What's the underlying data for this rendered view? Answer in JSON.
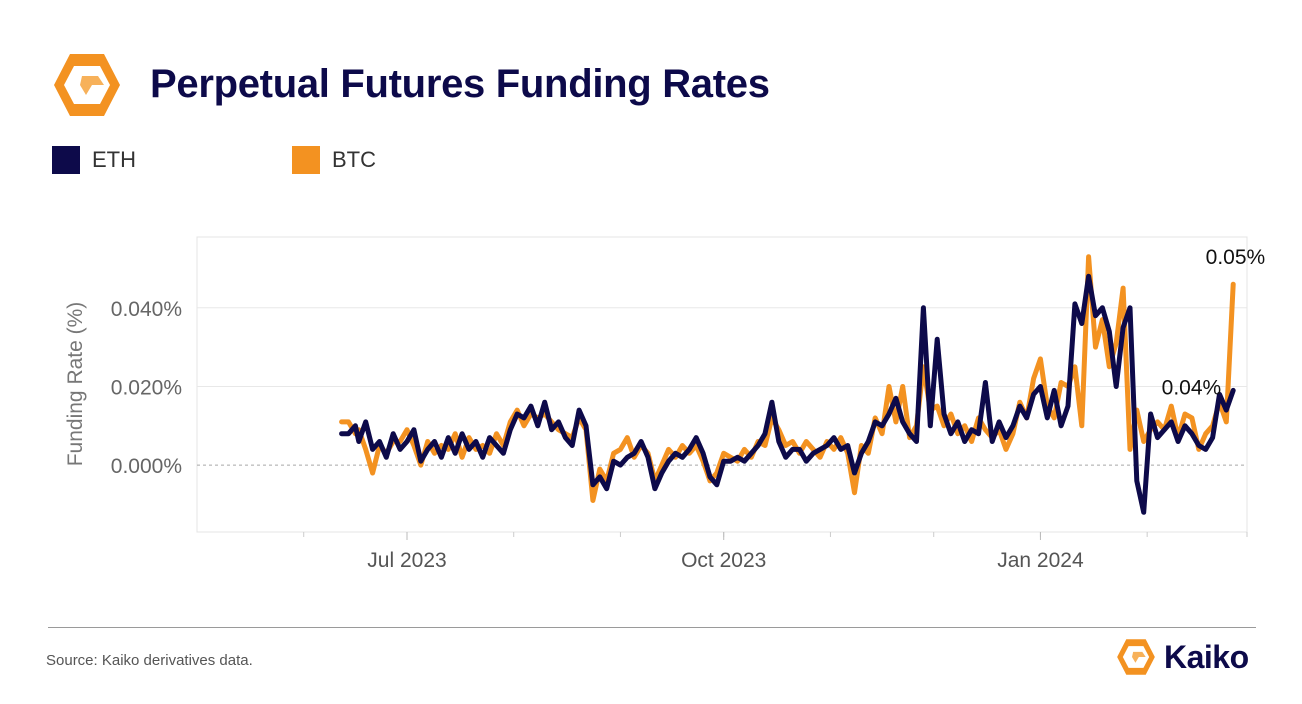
{
  "header": {
    "title": "Perpetual Futures Funding Rates",
    "logo_icon": "kaiko-hexagon-logo-icon"
  },
  "legend": [
    {
      "label": "ETH",
      "color": "#0d0a4a"
    },
    {
      "label": "BTC",
      "color": "#f39221"
    }
  ],
  "footer": {
    "source": "Source: Kaiko derivatives data.",
    "brand_name": "Kaiko",
    "brand_icon": "kaiko-logo-icon"
  },
  "colors": {
    "eth": "#0d0a4a",
    "btc": "#f39221",
    "brand_orange": "#f39221"
  },
  "chart_data": {
    "type": "line",
    "title": "",
    "xlabel": "",
    "ylabel": "Funding Rate (%)",
    "ylim": [
      -0.017,
      0.058
    ],
    "xlim": [
      "2023-05-01",
      "2024-03-01"
    ],
    "yticks": [
      0.0,
      0.02,
      0.04
    ],
    "ytick_labels": [
      "0.000%",
      "0.020%",
      "0.040%"
    ],
    "xticks": [
      "2023-07-01",
      "2023-10-01",
      "2024-01-01"
    ],
    "xtick_labels": [
      "Jul 2023",
      "Oct 2023",
      "Jan 2024"
    ],
    "zero_line": true,
    "grid": true,
    "legend_position": "top-left",
    "annotations": [
      {
        "series": "BTC",
        "text": "0.05%"
      },
      {
        "series": "ETH",
        "text": "0.04%"
      }
    ],
    "series": [
      {
        "name": "ETH",
        "points": [
          [
            "2023-06-12",
            0.008
          ],
          [
            "2023-06-14",
            0.008
          ],
          [
            "2023-06-16",
            0.01
          ],
          [
            "2023-06-17",
            0.006
          ],
          [
            "2023-06-19",
            0.011
          ],
          [
            "2023-06-21",
            0.004
          ],
          [
            "2023-06-23",
            0.006
          ],
          [
            "2023-06-25",
            0.002
          ],
          [
            "2023-06-27",
            0.008
          ],
          [
            "2023-06-29",
            0.004
          ],
          [
            "2023-07-01",
            0.006
          ],
          [
            "2023-07-03",
            0.009
          ],
          [
            "2023-07-05",
            0.001
          ],
          [
            "2023-07-07",
            0.004
          ],
          [
            "2023-07-09",
            0.006
          ],
          [
            "2023-07-11",
            0.002
          ],
          [
            "2023-07-13",
            0.007
          ],
          [
            "2023-07-15",
            0.003
          ],
          [
            "2023-07-17",
            0.008
          ],
          [
            "2023-07-19",
            0.004
          ],
          [
            "2023-07-21",
            0.006
          ],
          [
            "2023-07-23",
            0.002
          ],
          [
            "2023-07-25",
            0.007
          ],
          [
            "2023-07-27",
            0.005
          ],
          [
            "2023-07-29",
            0.003
          ],
          [
            "2023-07-31",
            0.009
          ],
          [
            "2023-08-02",
            0.013
          ],
          [
            "2023-08-04",
            0.012
          ],
          [
            "2023-08-06",
            0.015
          ],
          [
            "2023-08-08",
            0.01
          ],
          [
            "2023-08-10",
            0.016
          ],
          [
            "2023-08-12",
            0.009
          ],
          [
            "2023-08-14",
            0.011
          ],
          [
            "2023-08-16",
            0.007
          ],
          [
            "2023-08-18",
            0.005
          ],
          [
            "2023-08-20",
            0.014
          ],
          [
            "2023-08-22",
            0.01
          ],
          [
            "2023-08-24",
            -0.005
          ],
          [
            "2023-08-26",
            -0.003
          ],
          [
            "2023-08-28",
            -0.006
          ],
          [
            "2023-08-30",
            0.001
          ],
          [
            "2023-09-01",
            0.0
          ],
          [
            "2023-09-03",
            0.002
          ],
          [
            "2023-09-05",
            0.003
          ],
          [
            "2023-09-07",
            0.006
          ],
          [
            "2023-09-09",
            0.002
          ],
          [
            "2023-09-11",
            -0.006
          ],
          [
            "2023-09-13",
            -0.002
          ],
          [
            "2023-09-15",
            0.001
          ],
          [
            "2023-09-17",
            0.003
          ],
          [
            "2023-09-19",
            0.002
          ],
          [
            "2023-09-21",
            0.004
          ],
          [
            "2023-09-23",
            0.007
          ],
          [
            "2023-09-25",
            0.003
          ],
          [
            "2023-09-27",
            -0.003
          ],
          [
            "2023-09-29",
            -0.005
          ],
          [
            "2023-10-01",
            0.001
          ],
          [
            "2023-10-03",
            0.001
          ],
          [
            "2023-10-05",
            0.002
          ],
          [
            "2023-10-07",
            0.001
          ],
          [
            "2023-10-09",
            0.003
          ],
          [
            "2023-10-11",
            0.005
          ],
          [
            "2023-10-13",
            0.008
          ],
          [
            "2023-10-15",
            0.016
          ],
          [
            "2023-10-17",
            0.006
          ],
          [
            "2023-10-19",
            0.002
          ],
          [
            "2023-10-21",
            0.004
          ],
          [
            "2023-10-23",
            0.004
          ],
          [
            "2023-10-25",
            0.001
          ],
          [
            "2023-10-27",
            0.003
          ],
          [
            "2023-10-29",
            0.004
          ],
          [
            "2023-10-31",
            0.005
          ],
          [
            "2023-11-02",
            0.007
          ],
          [
            "2023-11-04",
            0.004
          ],
          [
            "2023-11-06",
            0.005
          ],
          [
            "2023-11-08",
            -0.002
          ],
          [
            "2023-11-10",
            0.003
          ],
          [
            "2023-11-12",
            0.006
          ],
          [
            "2023-11-14",
            0.011
          ],
          [
            "2023-11-16",
            0.01
          ],
          [
            "2023-11-18",
            0.013
          ],
          [
            "2023-11-20",
            0.017
          ],
          [
            "2023-11-22",
            0.011
          ],
          [
            "2023-11-24",
            0.008
          ],
          [
            "2023-11-26",
            0.006
          ],
          [
            "2023-11-28",
            0.04
          ],
          [
            "2023-11-30",
            0.01
          ],
          [
            "2023-12-02",
            0.032
          ],
          [
            "2023-12-04",
            0.013
          ],
          [
            "2023-12-06",
            0.008
          ],
          [
            "2023-12-08",
            0.011
          ],
          [
            "2023-12-10",
            0.006
          ],
          [
            "2023-12-12",
            0.009
          ],
          [
            "2023-12-14",
            0.008
          ],
          [
            "2023-12-16",
            0.021
          ],
          [
            "2023-12-18",
            0.006
          ],
          [
            "2023-12-20",
            0.011
          ],
          [
            "2023-12-22",
            0.007
          ],
          [
            "2023-12-24",
            0.01
          ],
          [
            "2023-12-26",
            0.015
          ],
          [
            "2023-12-28",
            0.012
          ],
          [
            "2023-12-30",
            0.018
          ],
          [
            "2024-01-01",
            0.02
          ],
          [
            "2024-01-03",
            0.012
          ],
          [
            "2024-01-05",
            0.019
          ],
          [
            "2024-01-07",
            0.01
          ],
          [
            "2024-01-09",
            0.015
          ],
          [
            "2024-01-11",
            0.041
          ],
          [
            "2024-01-13",
            0.036
          ],
          [
            "2024-01-15",
            0.048
          ],
          [
            "2024-01-17",
            0.038
          ],
          [
            "2024-01-19",
            0.04
          ],
          [
            "2024-01-21",
            0.034
          ],
          [
            "2024-01-23",
            0.02
          ],
          [
            "2024-01-25",
            0.035
          ],
          [
            "2024-01-27",
            0.04
          ],
          [
            "2024-01-29",
            -0.004
          ],
          [
            "2024-01-31",
            -0.012
          ],
          [
            "2024-02-02",
            0.013
          ],
          [
            "2024-02-04",
            0.007
          ],
          [
            "2024-02-06",
            0.009
          ],
          [
            "2024-02-08",
            0.011
          ],
          [
            "2024-02-10",
            0.006
          ],
          [
            "2024-02-12",
            0.01
          ],
          [
            "2024-02-14",
            0.008
          ],
          [
            "2024-02-16",
            0.005
          ],
          [
            "2024-02-18",
            0.004
          ],
          [
            "2024-02-20",
            0.007
          ],
          [
            "2024-02-22",
            0.018
          ],
          [
            "2024-02-24",
            0.014
          ],
          [
            "2024-02-26",
            0.019
          ]
        ]
      },
      {
        "name": "BTC",
        "points": [
          [
            "2023-06-12",
            0.011
          ],
          [
            "2023-06-14",
            0.011
          ],
          [
            "2023-06-16",
            0.008
          ],
          [
            "2023-06-17",
            0.009
          ],
          [
            "2023-06-19",
            0.004
          ],
          [
            "2023-06-21",
            -0.002
          ],
          [
            "2023-06-23",
            0.005
          ],
          [
            "2023-06-25",
            0.003
          ],
          [
            "2023-06-27",
            0.006
          ],
          [
            "2023-06-29",
            0.006
          ],
          [
            "2023-07-01",
            0.009
          ],
          [
            "2023-07-03",
            0.005
          ],
          [
            "2023-07-05",
            0.0
          ],
          [
            "2023-07-07",
            0.006
          ],
          [
            "2023-07-09",
            0.003
          ],
          [
            "2023-07-11",
            0.005
          ],
          [
            "2023-07-13",
            0.004
          ],
          [
            "2023-07-15",
            0.008
          ],
          [
            "2023-07-17",
            0.002
          ],
          [
            "2023-07-19",
            0.007
          ],
          [
            "2023-07-21",
            0.004
          ],
          [
            "2023-07-23",
            0.005
          ],
          [
            "2023-07-25",
            0.003
          ],
          [
            "2023-07-27",
            0.008
          ],
          [
            "2023-07-29",
            0.005
          ],
          [
            "2023-07-31",
            0.011
          ],
          [
            "2023-08-02",
            0.014
          ],
          [
            "2023-08-04",
            0.01
          ],
          [
            "2023-08-06",
            0.013
          ],
          [
            "2023-08-08",
            0.012
          ],
          [
            "2023-08-10",
            0.013
          ],
          [
            "2023-08-12",
            0.011
          ],
          [
            "2023-08-14",
            0.009
          ],
          [
            "2023-08-16",
            0.008
          ],
          [
            "2023-08-18",
            0.007
          ],
          [
            "2023-08-20",
            0.012
          ],
          [
            "2023-08-22",
            0.009
          ],
          [
            "2023-08-24",
            -0.009
          ],
          [
            "2023-08-26",
            -0.001
          ],
          [
            "2023-08-28",
            -0.004
          ],
          [
            "2023-08-30",
            0.003
          ],
          [
            "2023-09-01",
            0.004
          ],
          [
            "2023-09-03",
            0.007
          ],
          [
            "2023-09-05",
            0.002
          ],
          [
            "2023-09-07",
            0.005
          ],
          [
            "2023-09-09",
            0.003
          ],
          [
            "2023-09-11",
            -0.004
          ],
          [
            "2023-09-13",
            0.0
          ],
          [
            "2023-09-15",
            0.004
          ],
          [
            "2023-09-17",
            0.002
          ],
          [
            "2023-09-19",
            0.005
          ],
          [
            "2023-09-21",
            0.003
          ],
          [
            "2023-09-23",
            0.005
          ],
          [
            "2023-09-25",
            0.001
          ],
          [
            "2023-09-27",
            -0.004
          ],
          [
            "2023-09-29",
            -0.002
          ],
          [
            "2023-10-01",
            0.003
          ],
          [
            "2023-10-03",
            0.002
          ],
          [
            "2023-10-05",
            0.001
          ],
          [
            "2023-10-07",
            0.004
          ],
          [
            "2023-10-09",
            0.002
          ],
          [
            "2023-10-11",
            0.006
          ],
          [
            "2023-10-13",
            0.005
          ],
          [
            "2023-10-15",
            0.012
          ],
          [
            "2023-10-17",
            0.009
          ],
          [
            "2023-10-19",
            0.005
          ],
          [
            "2023-10-21",
            0.006
          ],
          [
            "2023-10-23",
            0.003
          ],
          [
            "2023-10-25",
            0.006
          ],
          [
            "2023-10-27",
            0.004
          ],
          [
            "2023-10-29",
            0.002
          ],
          [
            "2023-10-31",
            0.006
          ],
          [
            "2023-11-02",
            0.004
          ],
          [
            "2023-11-04",
            0.007
          ],
          [
            "2023-11-06",
            0.003
          ],
          [
            "2023-11-08",
            -0.007
          ],
          [
            "2023-11-10",
            0.005
          ],
          [
            "2023-11-12",
            0.003
          ],
          [
            "2023-11-14",
            0.012
          ],
          [
            "2023-11-16",
            0.008
          ],
          [
            "2023-11-18",
            0.02
          ],
          [
            "2023-11-20",
            0.011
          ],
          [
            "2023-11-22",
            0.02
          ],
          [
            "2023-11-24",
            0.007
          ],
          [
            "2023-11-26",
            0.01
          ],
          [
            "2023-11-28",
            0.025
          ],
          [
            "2023-11-30",
            0.014
          ],
          [
            "2023-12-02",
            0.015
          ],
          [
            "2023-12-04",
            0.01
          ],
          [
            "2023-12-06",
            0.013
          ],
          [
            "2023-12-08",
            0.008
          ],
          [
            "2023-12-10",
            0.01
          ],
          [
            "2023-12-12",
            0.006
          ],
          [
            "2023-12-14",
            0.012
          ],
          [
            "2023-12-16",
            0.009
          ],
          [
            "2023-12-18",
            0.007
          ],
          [
            "2023-12-20",
            0.009
          ],
          [
            "2023-12-22",
            0.004
          ],
          [
            "2023-12-24",
            0.008
          ],
          [
            "2023-12-26",
            0.016
          ],
          [
            "2023-12-28",
            0.012
          ],
          [
            "2023-12-30",
            0.022
          ],
          [
            "2024-01-01",
            0.027
          ],
          [
            "2024-01-03",
            0.015
          ],
          [
            "2024-01-05",
            0.012
          ],
          [
            "2024-01-07",
            0.021
          ],
          [
            "2024-01-09",
            0.02
          ],
          [
            "2024-01-11",
            0.025
          ],
          [
            "2024-01-13",
            0.01
          ],
          [
            "2024-01-15",
            0.053
          ],
          [
            "2024-01-17",
            0.03
          ],
          [
            "2024-01-19",
            0.037
          ],
          [
            "2024-01-21",
            0.025
          ],
          [
            "2024-01-23",
            0.031
          ],
          [
            "2024-01-25",
            0.045
          ],
          [
            "2024-01-27",
            0.004
          ],
          [
            "2024-01-29",
            0.014
          ],
          [
            "2024-01-31",
            0.006
          ],
          [
            "2024-02-02",
            0.009
          ],
          [
            "2024-02-04",
            0.011
          ],
          [
            "2024-02-06",
            0.009
          ],
          [
            "2024-02-08",
            0.015
          ],
          [
            "2024-02-10",
            0.007
          ],
          [
            "2024-02-12",
            0.013
          ],
          [
            "2024-02-14",
            0.012
          ],
          [
            "2024-02-16",
            0.004
          ],
          [
            "2024-02-18",
            0.008
          ],
          [
            "2024-02-20",
            0.01
          ],
          [
            "2024-02-22",
            0.016
          ],
          [
            "2024-02-24",
            0.011
          ],
          [
            "2024-02-26",
            0.046
          ]
        ]
      }
    ]
  }
}
